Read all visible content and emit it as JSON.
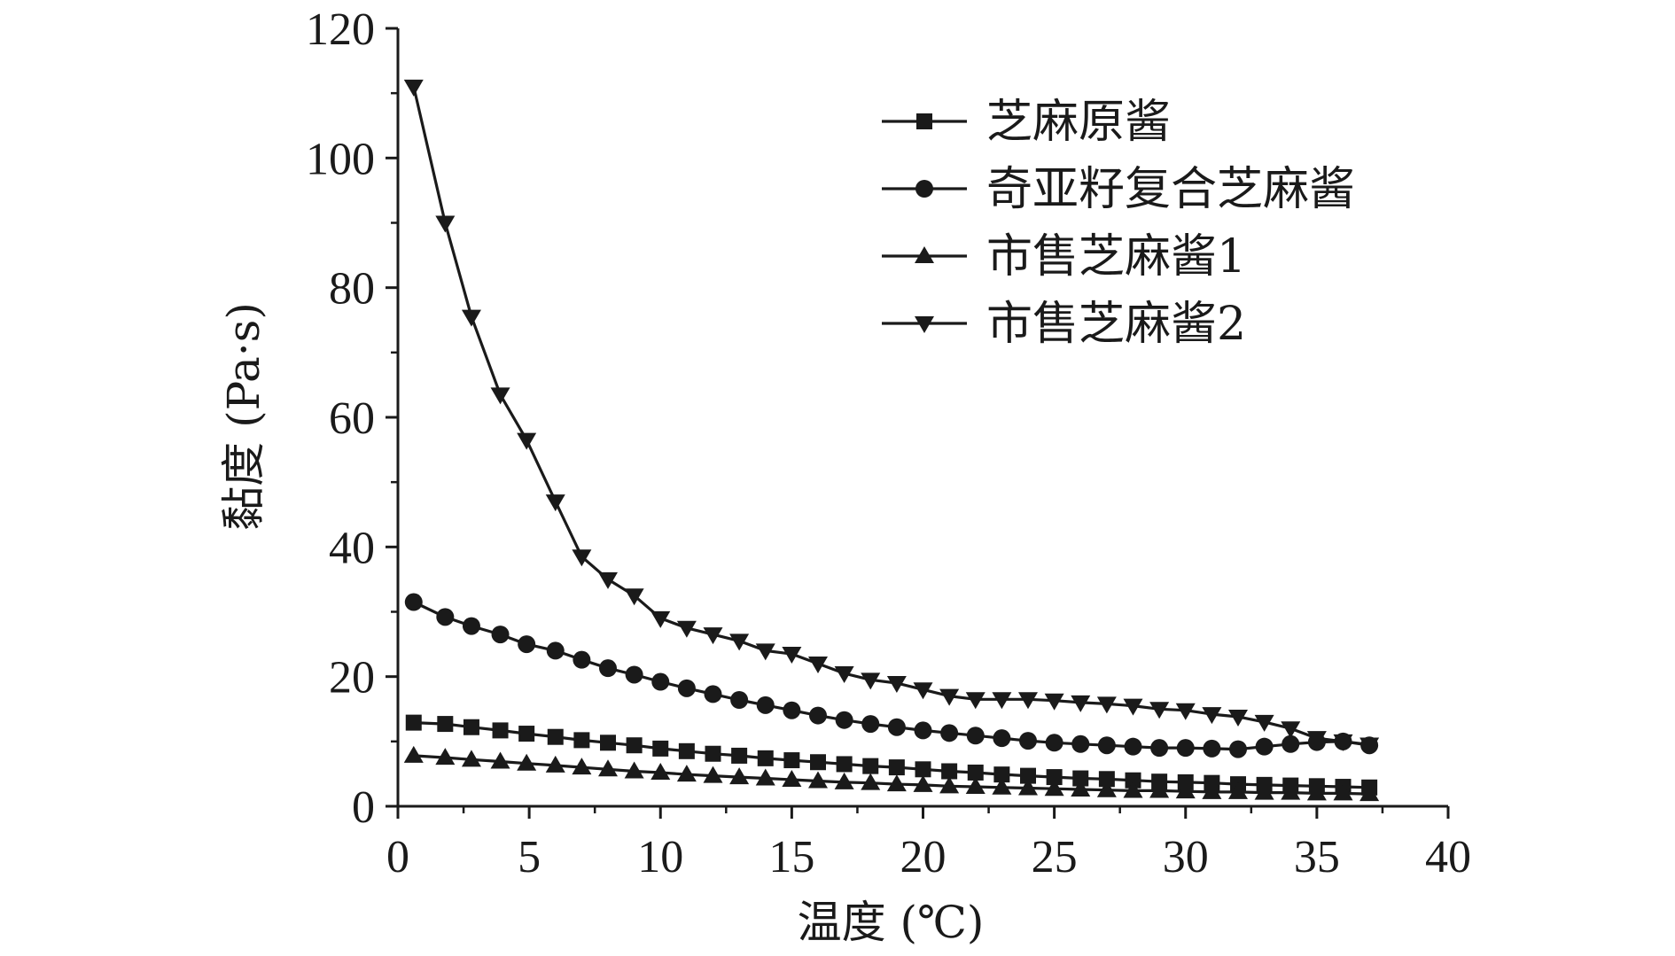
{
  "chart_data": {
    "type": "line",
    "title": "",
    "xlabel": "温度 (℃)",
    "ylabel": "黏度 (Pa·s)",
    "xlim": [
      0,
      40
    ],
    "ylim": [
      0,
      120
    ],
    "xticks": [
      0,
      5,
      10,
      15,
      20,
      25,
      30,
      35,
      40
    ],
    "yticks": [
      0,
      20,
      40,
      60,
      80,
      100,
      120
    ],
    "grid": false,
    "legend_position": "top-right",
    "x": [
      0.6,
      1.8,
      2.8,
      3.9,
      4.9,
      6.0,
      7.0,
      8.0,
      9.0,
      10.0,
      11.0,
      12.0,
      13.0,
      14.0,
      15.0,
      16.0,
      17.0,
      18.0,
      19.0,
      20.0,
      21.0,
      22.0,
      23.0,
      24.0,
      25.0,
      26.0,
      27.0,
      28.0,
      29.0,
      30.0,
      31.0,
      32.0,
      33.0,
      34.0,
      35.0,
      36.0,
      37.0
    ],
    "series": [
      {
        "name": "芝麻原酱",
        "marker": "square",
        "values": [
          12.9,
          12.7,
          12.2,
          11.7,
          11.2,
          10.7,
          10.2,
          9.8,
          9.4,
          8.9,
          8.5,
          8.1,
          7.8,
          7.4,
          7.1,
          6.8,
          6.5,
          6.2,
          6.0,
          5.7,
          5.4,
          5.2,
          4.9,
          4.7,
          4.5,
          4.3,
          4.2,
          4.0,
          3.8,
          3.7,
          3.6,
          3.4,
          3.3,
          3.2,
          3.1,
          3.0,
          2.9
        ]
      },
      {
        "name": "奇亚籽复合芝麻酱",
        "marker": "circle",
        "values": [
          31.5,
          29.2,
          27.8,
          26.5,
          25.0,
          24.0,
          22.6,
          21.3,
          20.3,
          19.2,
          18.2,
          17.3,
          16.4,
          15.6,
          14.8,
          14.0,
          13.3,
          12.7,
          12.2,
          11.7,
          11.3,
          10.9,
          10.5,
          10.1,
          9.8,
          9.6,
          9.4,
          9.2,
          9.0,
          9.0,
          8.9,
          8.8,
          9.2,
          9.6,
          9.9,
          10.0,
          9.4
        ]
      },
      {
        "name": "市售芝麻酱1",
        "marker": "triangle-up",
        "values": [
          7.8,
          7.5,
          7.2,
          6.9,
          6.6,
          6.3,
          6.0,
          5.7,
          5.4,
          5.2,
          4.9,
          4.7,
          4.5,
          4.3,
          4.1,
          3.9,
          3.7,
          3.6,
          3.4,
          3.3,
          3.1,
          3.0,
          2.9,
          2.8,
          2.7,
          2.6,
          2.5,
          2.4,
          2.4,
          2.3,
          2.2,
          2.2,
          2.1,
          2.1,
          2.0,
          2.0,
          1.9
        ]
      },
      {
        "name": "市售芝麻酱2",
        "marker": "triangle-down",
        "values": [
          111.0,
          90.0,
          75.5,
          63.5,
          56.5,
          47.0,
          38.5,
          35.0,
          32.5,
          29.0,
          27.5,
          26.5,
          25.5,
          24.0,
          23.5,
          22.0,
          20.5,
          19.5,
          19.0,
          18.0,
          17.0,
          16.5,
          16.5,
          16.5,
          16.3,
          16.0,
          15.8,
          15.5,
          15.0,
          14.8,
          14.2,
          13.8,
          13.0,
          12.0,
          10.5,
          10.0,
          9.5
        ]
      }
    ]
  }
}
